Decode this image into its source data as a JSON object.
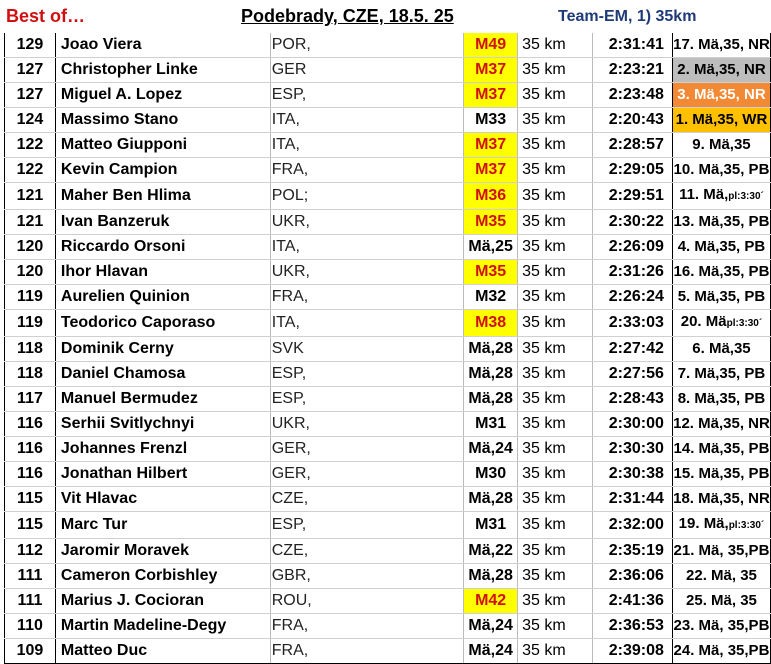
{
  "header": {
    "left": "Best of…",
    "title": "Podebrady, CZE, 18.5. 25",
    "right": "Team-EM, 1) 35km"
  },
  "colors": {
    "highlight_yellow": "#ffff00",
    "highlight_red_text": "#d01010",
    "silver": "#bdbdbd",
    "bronze": "#f28a35",
    "gold": "#ffc000"
  },
  "rows": [
    {
      "score": "129",
      "name": "Joao Viera",
      "nat": "POR,",
      "cat": "M49",
      "cat_hl": true,
      "dist": "35 km",
      "time": "2:31:41",
      "note": "17. Mä,35, NR",
      "note_bg": ""
    },
    {
      "score": "127",
      "name": "Christopher Linke",
      "nat": "GER",
      "cat": "M37",
      "cat_hl": true,
      "dist": "35 km",
      "time": "2:23:21",
      "note": "2. Mä,35, NR",
      "note_bg": "grey"
    },
    {
      "score": "127",
      "name": "Miguel A. Lopez",
      "nat": "ESP,",
      "cat": "M37",
      "cat_hl": true,
      "dist": "35 km",
      "time": "2:23:48",
      "note": "3. Mä,35, NR",
      "note_bg": "orange"
    },
    {
      "score": "124",
      "name": "Massimo Stano",
      "nat": "ITA,",
      "cat": "M33",
      "cat_hl": false,
      "dist": "35 km",
      "time": "2:20:43",
      "note": "1. Mä,35, WR",
      "note_bg": "gold"
    },
    {
      "score": "122",
      "name": "Matteo Giupponi",
      "nat": "ITA,",
      "cat": "M37",
      "cat_hl": true,
      "dist": "35 km",
      "time": "2:28:57",
      "note": "9. Mä,35",
      "note_bg": ""
    },
    {
      "score": "122",
      "name": "Kevin Campion",
      "nat": "FRA,",
      "cat": "M37",
      "cat_hl": true,
      "dist": "35 km",
      "time": "2:29:05",
      "note": "10. Mä,35, PB",
      "note_bg": ""
    },
    {
      "score": "121",
      "name": "Maher Ben Hlima",
      "nat": "POL;",
      "cat": "M36",
      "cat_hl": true,
      "dist": "35 km",
      "time": "2:29:51",
      "note": "11. Mä,",
      "note_small": "pl:3:30´",
      "note_bg": ""
    },
    {
      "score": "121",
      "name": "Ivan Banzeruk",
      "nat": "UKR,",
      "cat": "M35",
      "cat_hl": true,
      "dist": "35 km",
      "time": "2:30:22",
      "note": "13. Mä,35, PB",
      "note_bg": ""
    },
    {
      "score": "120",
      "name": "Riccardo Orsoni",
      "nat": "ITA,",
      "cat": "Mä,25",
      "cat_hl": false,
      "dist": "35 km",
      "time": "2:26:09",
      "note": "4. Mä,35, PB",
      "note_bg": ""
    },
    {
      "score": "120",
      "name": "Ihor Hlavan",
      "nat": "UKR,",
      "cat": "M35",
      "cat_hl": true,
      "dist": "35 km",
      "time": "2:31:26",
      "note": "16. Mä,35, PB",
      "note_bg": ""
    },
    {
      "score": "119",
      "name": "Aurelien Quinion",
      "nat": "FRA,",
      "cat": "M32",
      "cat_hl": false,
      "dist": "35 km",
      "time": "2:26:24",
      "note": "5. Mä,35, PB",
      "note_bg": ""
    },
    {
      "score": "119",
      "name": "Teodorico Caporaso",
      "nat": "ITA,",
      "cat": "M38",
      "cat_hl": true,
      "dist": "35 km",
      "time": "2:33:03",
      "note": "20. Mä",
      "note_small": "pl:3:30´",
      "note_bg": ""
    },
    {
      "score": "118",
      "name": "Dominik Cerny",
      "nat": "SVK",
      "cat": "Mä,28",
      "cat_hl": false,
      "dist": "35 km",
      "time": "2:27:42",
      "note": "6. Mä,35",
      "note_bg": ""
    },
    {
      "score": "118",
      "name": "Daniel Chamosa",
      "nat": "ESP,",
      "cat": "Mä,28",
      "cat_hl": false,
      "dist": "35 km",
      "time": "2:27:56",
      "note": "7. Mä,35, PB",
      "note_bg": ""
    },
    {
      "score": "117",
      "name": "Manuel Bermudez",
      "nat": "ESP,",
      "cat": "Mä,28",
      "cat_hl": false,
      "dist": "35 km",
      "time": "2:28:43",
      "note": "8. Mä,35, PB",
      "note_bg": ""
    },
    {
      "score": "116",
      "name": "Serhii Svitlychnyi",
      "nat": "UKR,",
      "cat": "M31",
      "cat_hl": false,
      "dist": "35 km",
      "time": "2:30:00",
      "note": "12. Mä,35, NR",
      "note_bg": ""
    },
    {
      "score": "116",
      "name": "Johannes Frenzl",
      "nat": "GER,",
      "cat": "Mä,24",
      "cat_hl": false,
      "dist": "35 km",
      "time": "2:30:30",
      "note": "14. Mä,35, PB",
      "note_bg": ""
    },
    {
      "score": "116",
      "name": "Jonathan Hilbert",
      "nat": "GER,",
      "cat": "M30",
      "cat_hl": false,
      "dist": "35 km",
      "time": "2:30:38",
      "note": "15. Mä,35, PB",
      "note_bg": ""
    },
    {
      "score": "115",
      "name": "Vit Hlavac",
      "nat": "CZE,",
      "cat": "Mä,28",
      "cat_hl": false,
      "dist": "35 km",
      "time": "2:31:44",
      "note": "18. Mä,35, NR",
      "note_bg": ""
    },
    {
      "score": "115",
      "name": "Marc Tur",
      "nat": "ESP,",
      "cat": "M31",
      "cat_hl": false,
      "dist": "35 km",
      "time": "2:32:00",
      "note": "19. Mä,",
      "note_small": "pl:3:30´",
      "note_bg": ""
    },
    {
      "score": "112",
      "name": "Jaromir Moravek",
      "nat": "CZE,",
      "cat": "Mä,22",
      "cat_hl": false,
      "dist": "35 km",
      "time": "2:35:19",
      "note": "21. Mä, 35,PB",
      "note_bg": ""
    },
    {
      "score": "111",
      "name": "Cameron Corbishley",
      "nat": "GBR,",
      "cat": "Mä,28",
      "cat_hl": false,
      "dist": "35 km",
      "time": "2:36:06",
      "note": "22. Mä, 35",
      "note_bg": ""
    },
    {
      "score": "111",
      "name": "Marius J. Cocioran",
      "nat": "ROU,",
      "cat": "M42",
      "cat_hl": true,
      "dist": "35 km",
      "time": "2:41:36",
      "note": "25. Mä, 35",
      "note_bg": ""
    },
    {
      "score": "110",
      "name": "Martin Madeline-Degy",
      "nat": "FRA,",
      "cat": "Mä,24",
      "cat_hl": false,
      "dist": "35 km",
      "time": "2:36:53",
      "note": "23. Mä, 35,PB",
      "note_bg": ""
    },
    {
      "score": "109",
      "name": "Matteo Duc",
      "nat": "FRA,",
      "cat": "Mä,24",
      "cat_hl": false,
      "dist": "35 km",
      "time": "2:39:08",
      "note": "24. Mä, 35,PB",
      "note_bg": ""
    }
  ]
}
